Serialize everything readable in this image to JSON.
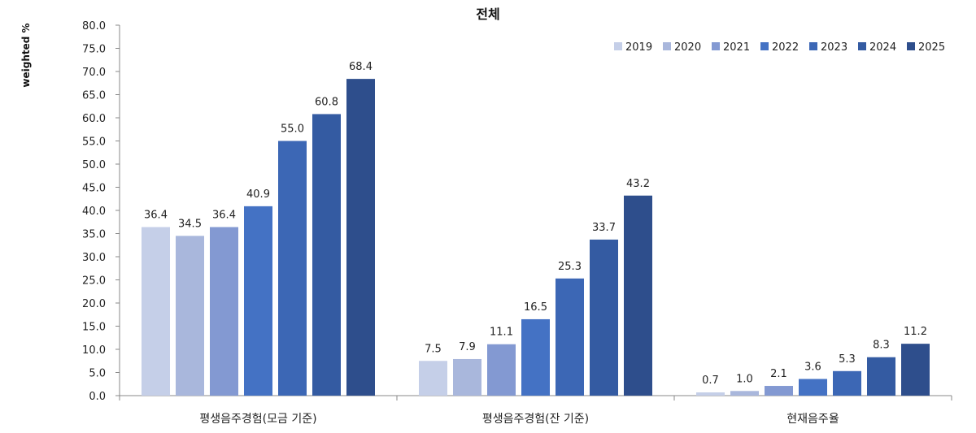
{
  "chart_data": {
    "type": "bar",
    "title": "전체",
    "ylabel": "weighted %",
    "xlabel": "",
    "ylim": [
      0,
      80
    ],
    "ytick_step": 5,
    "ytick_format": "one-decimal",
    "grid": false,
    "legend_position": "top-right",
    "categories": [
      "평생음주경험(모금 기준)",
      "평생음주경험(잔 기준)",
      "현재음주율"
    ],
    "series": [
      {
        "name": "2019",
        "color": "#c5cfe8",
        "values": [
          36.4,
          7.5,
          0.7
        ]
      },
      {
        "name": "2020",
        "color": "#a9b7dc",
        "values": [
          34.5,
          7.9,
          1.0
        ]
      },
      {
        "name": "2021",
        "color": "#8399d2",
        "values": [
          36.4,
          11.1,
          2.1
        ]
      },
      {
        "name": "2022",
        "color": "#4472c4",
        "values": [
          40.9,
          16.5,
          3.6
        ]
      },
      {
        "name": "2023",
        "color": "#3c67b5",
        "values": [
          55.0,
          25.3,
          5.3
        ]
      },
      {
        "name": "2024",
        "color": "#345ba2",
        "values": [
          60.8,
          33.7,
          8.3
        ]
      },
      {
        "name": "2025",
        "color": "#2e4e8c",
        "values": [
          68.4,
          43.2,
          11.2
        ]
      }
    ]
  }
}
